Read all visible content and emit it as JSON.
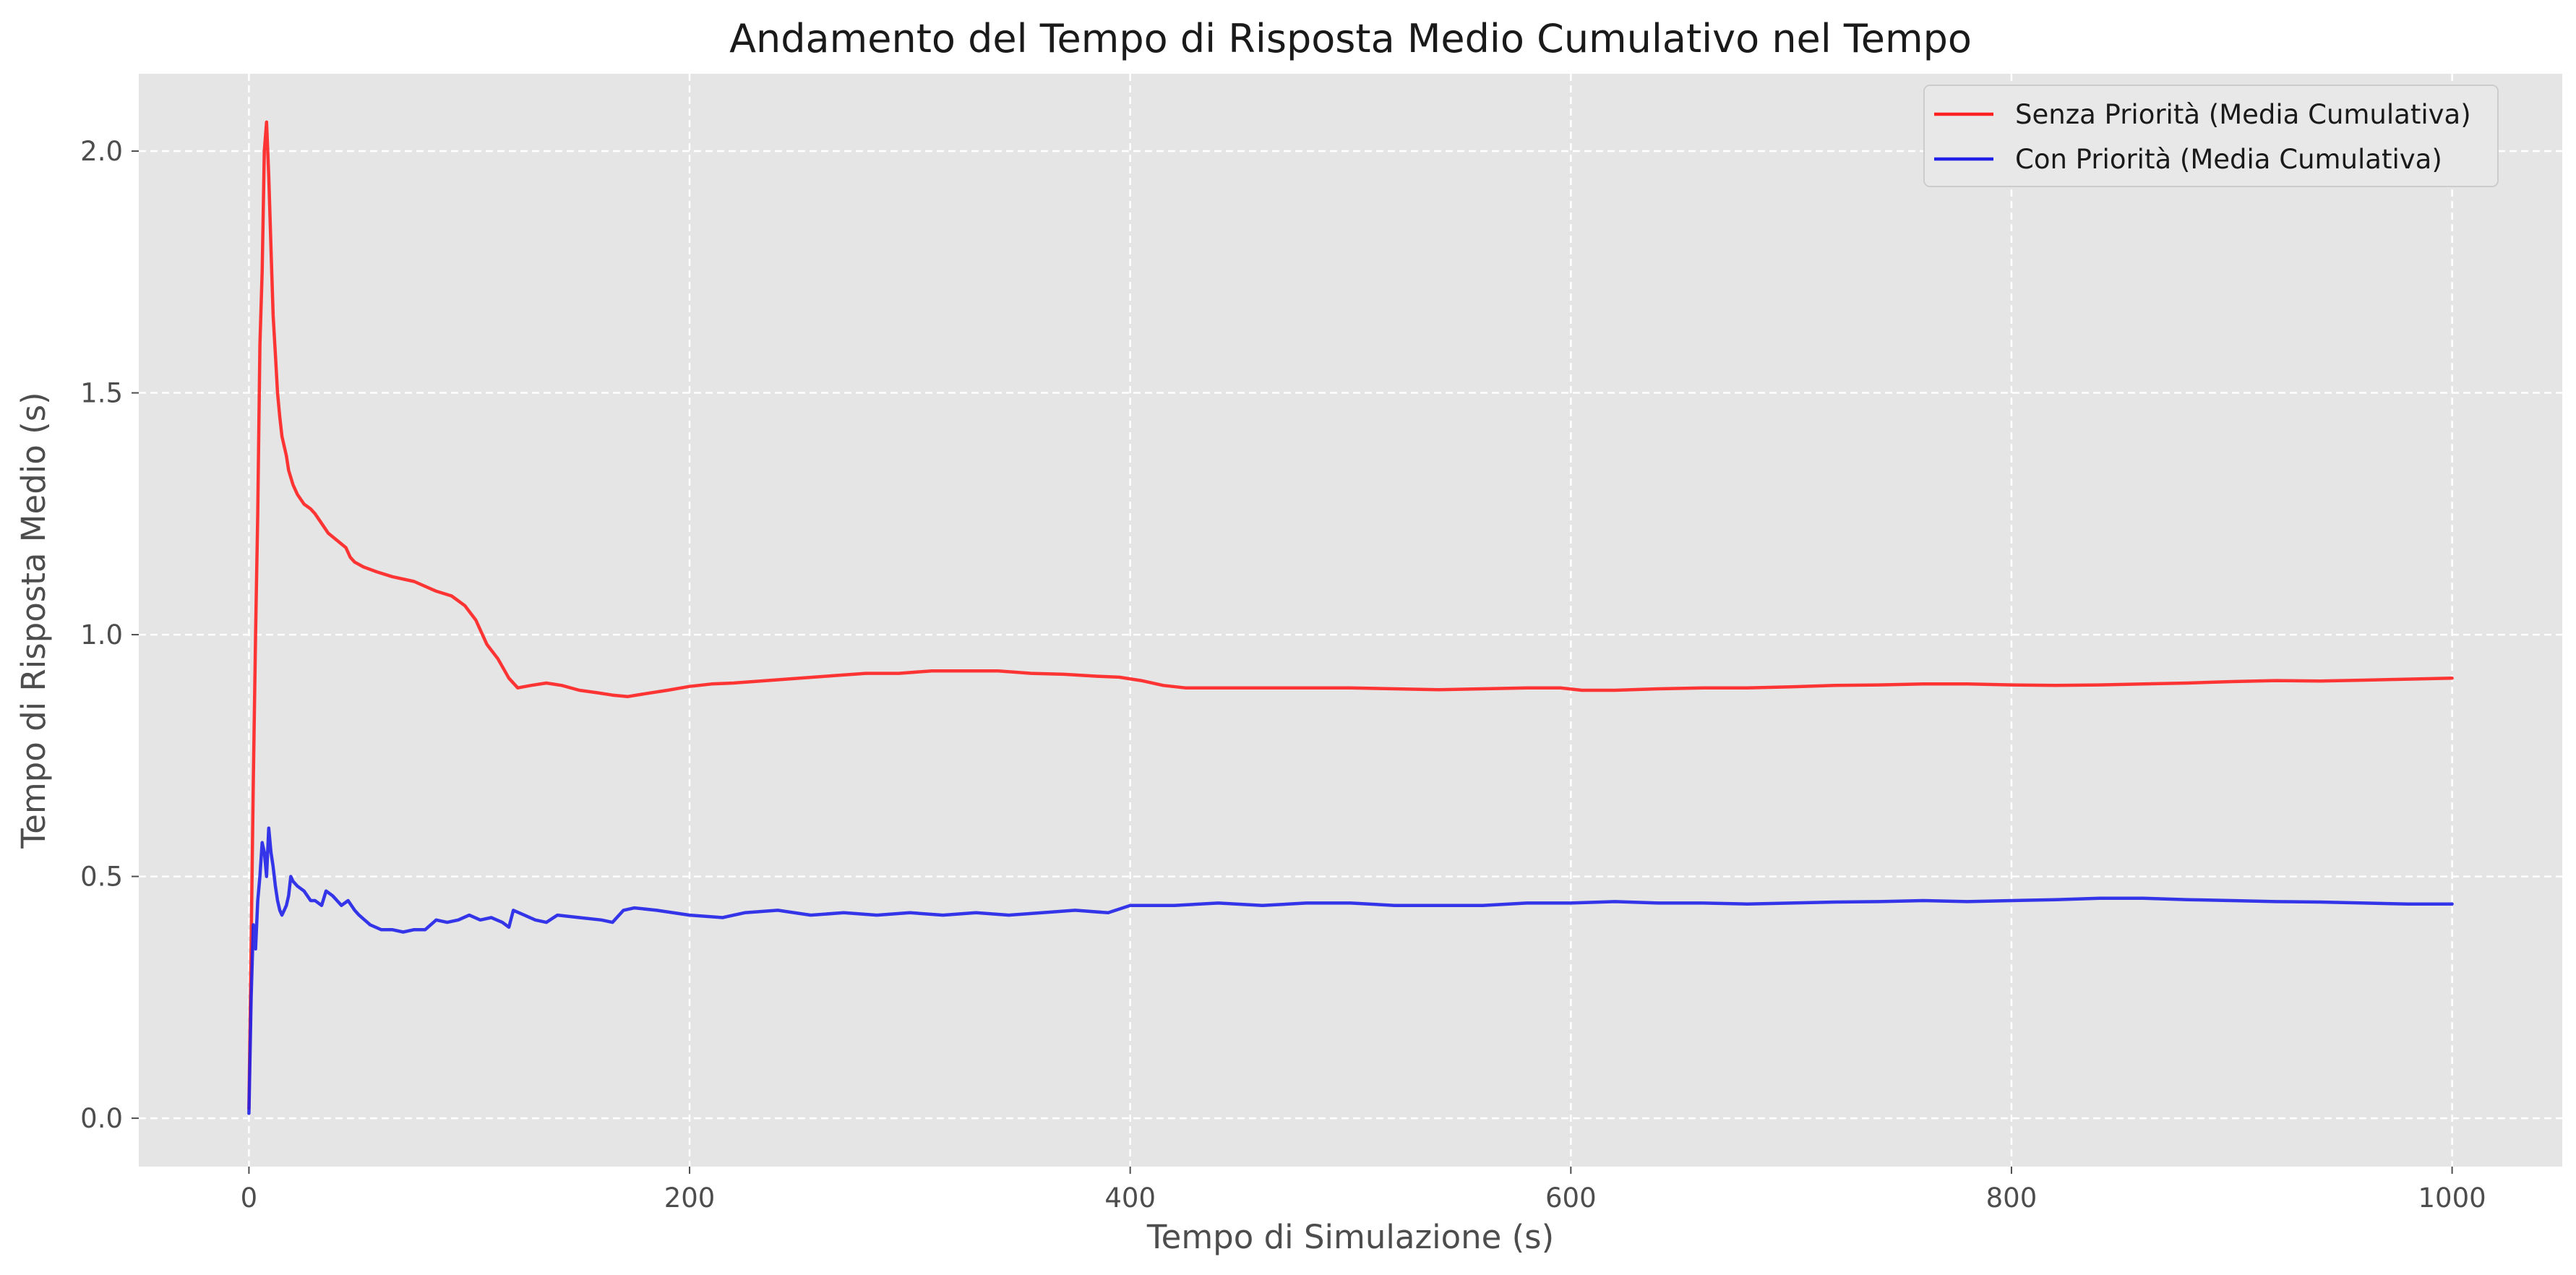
{
  "chart_data": {
    "type": "line",
    "title": "Andamento del Tempo di Risposta Medio Cumulativo nel Tempo",
    "xlabel": "Tempo di Simulazione (s)",
    "ylabel": "Tempo di Risposta Medio (s)",
    "xlim": [
      -50,
      1050
    ],
    "ylim": [
      -0.1,
      2.16
    ],
    "xticks": [
      0,
      200,
      400,
      600,
      800,
      1000
    ],
    "xtick_labels": [
      "0",
      "200",
      "400",
      "600",
      "800",
      "1000"
    ],
    "yticks": [
      0.0,
      0.5,
      1.0,
      1.5,
      2.0
    ],
    "ytick_labels": [
      "0.0",
      "0.5",
      "1.0",
      "1.5",
      "2.0"
    ],
    "grid": true,
    "legend_position": "top-right",
    "plot_background": "#e5e5e5",
    "grid_color": "#ffffff",
    "series": [
      {
        "name": "Senza Priorità (Media Cumulativa)",
        "color": "#ff2020",
        "x": [
          0,
          2,
          3,
          4,
          5,
          6,
          7,
          8,
          9,
          10,
          11,
          12,
          13,
          14,
          15,
          17,
          18,
          20,
          22,
          25,
          28,
          30,
          33,
          36,
          40,
          44,
          46,
          48,
          52,
          58,
          65,
          75,
          85,
          92,
          98,
          103,
          108,
          113,
          118,
          122,
          128,
          135,
          142,
          150,
          158,
          165,
          172,
          180,
          190,
          200,
          210,
          220,
          235,
          250,
          265,
          280,
          295,
          310,
          325,
          340,
          355,
          370,
          385,
          395,
          405,
          415,
          425,
          440,
          460,
          480,
          500,
          520,
          540,
          560,
          580,
          595,
          605,
          620,
          640,
          660,
          680,
          700,
          720,
          740,
          760,
          780,
          800,
          820,
          840,
          860,
          880,
          900,
          920,
          940,
          960,
          980,
          1000
        ],
        "y": [
          0.02,
          0.7,
          1.0,
          1.25,
          1.6,
          1.75,
          2.0,
          2.06,
          1.95,
          1.8,
          1.66,
          1.58,
          1.5,
          1.45,
          1.41,
          1.37,
          1.34,
          1.31,
          1.29,
          1.27,
          1.26,
          1.25,
          1.23,
          1.21,
          1.195,
          1.18,
          1.16,
          1.15,
          1.14,
          1.13,
          1.12,
          1.11,
          1.09,
          1.08,
          1.06,
          1.03,
          0.98,
          0.95,
          0.91,
          0.89,
          0.895,
          0.9,
          0.895,
          0.885,
          0.88,
          0.875,
          0.872,
          0.878,
          0.885,
          0.893,
          0.898,
          0.9,
          0.905,
          0.91,
          0.915,
          0.92,
          0.92,
          0.925,
          0.925,
          0.925,
          0.92,
          0.918,
          0.914,
          0.912,
          0.905,
          0.895,
          0.89,
          0.89,
          0.89,
          0.89,
          0.89,
          0.888,
          0.886,
          0.888,
          0.89,
          0.89,
          0.885,
          0.885,
          0.888,
          0.89,
          0.89,
          0.892,
          0.895,
          0.896,
          0.898,
          0.898,
          0.896,
          0.895,
          0.896,
          0.898,
          0.9,
          0.903,
          0.905,
          0.904,
          0.906,
          0.908,
          0.91
        ]
      },
      {
        "name": "Con Priorità (Media Cumulativa)",
        "color": "#2020e8",
        "x": [
          0,
          1,
          2,
          3,
          4,
          5,
          6,
          7,
          8,
          9,
          10,
          11,
          12,
          13,
          14,
          15,
          16,
          17,
          18,
          19,
          20,
          22,
          25,
          28,
          30,
          33,
          35,
          38,
          40,
          42,
          45,
          48,
          50,
          55,
          60,
          65,
          70,
          75,
          80,
          85,
          90,
          95,
          100,
          105,
          110,
          115,
          118,
          120,
          125,
          130,
          135,
          140,
          150,
          160,
          165,
          170,
          175,
          185,
          200,
          215,
          225,
          240,
          255,
          270,
          285,
          300,
          315,
          330,
          345,
          360,
          375,
          390,
          400,
          420,
          440,
          460,
          480,
          500,
          520,
          540,
          560,
          580,
          600,
          620,
          640,
          660,
          680,
          700,
          720,
          740,
          760,
          780,
          800,
          820,
          840,
          860,
          880,
          900,
          920,
          940,
          960,
          980,
          1000
        ],
        "y": [
          0.01,
          0.25,
          0.4,
          0.35,
          0.45,
          0.5,
          0.57,
          0.55,
          0.5,
          0.6,
          0.55,
          0.52,
          0.48,
          0.45,
          0.43,
          0.42,
          0.43,
          0.44,
          0.46,
          0.5,
          0.49,
          0.48,
          0.47,
          0.45,
          0.45,
          0.44,
          0.47,
          0.46,
          0.45,
          0.44,
          0.45,
          0.43,
          0.42,
          0.4,
          0.39,
          0.39,
          0.385,
          0.39,
          0.39,
          0.41,
          0.405,
          0.41,
          0.42,
          0.41,
          0.415,
          0.405,
          0.395,
          0.43,
          0.42,
          0.41,
          0.405,
          0.42,
          0.415,
          0.41,
          0.405,
          0.43,
          0.435,
          0.43,
          0.42,
          0.415,
          0.425,
          0.43,
          0.42,
          0.425,
          0.42,
          0.425,
          0.42,
          0.425,
          0.42,
          0.425,
          0.43,
          0.425,
          0.44,
          0.44,
          0.445,
          0.44,
          0.445,
          0.445,
          0.44,
          0.44,
          0.44,
          0.445,
          0.445,
          0.448,
          0.445,
          0.445,
          0.443,
          0.445,
          0.447,
          0.448,
          0.45,
          0.448,
          0.45,
          0.452,
          0.455,
          0.455,
          0.452,
          0.45,
          0.448,
          0.447,
          0.445,
          0.443,
          0.443
        ]
      }
    ]
  }
}
